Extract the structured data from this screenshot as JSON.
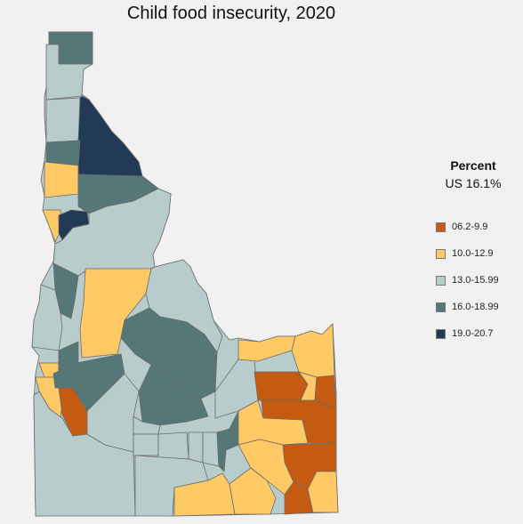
{
  "title": "Child food insecurity, 2020",
  "legend": {
    "title": "Percent",
    "us": "US 16.1%",
    "items": [
      {
        "label": "06.2-9.9",
        "color": "#c55a11"
      },
      {
        "label": "10.0-12.9",
        "color": "#ffc966"
      },
      {
        "label": "13.0-15.99",
        "color": "#b8cccc"
      },
      {
        "label": "16.0-18.99",
        "color": "#557777"
      },
      {
        "label": "19.0-20.7",
        "color": "#223a55"
      }
    ]
  }
}
